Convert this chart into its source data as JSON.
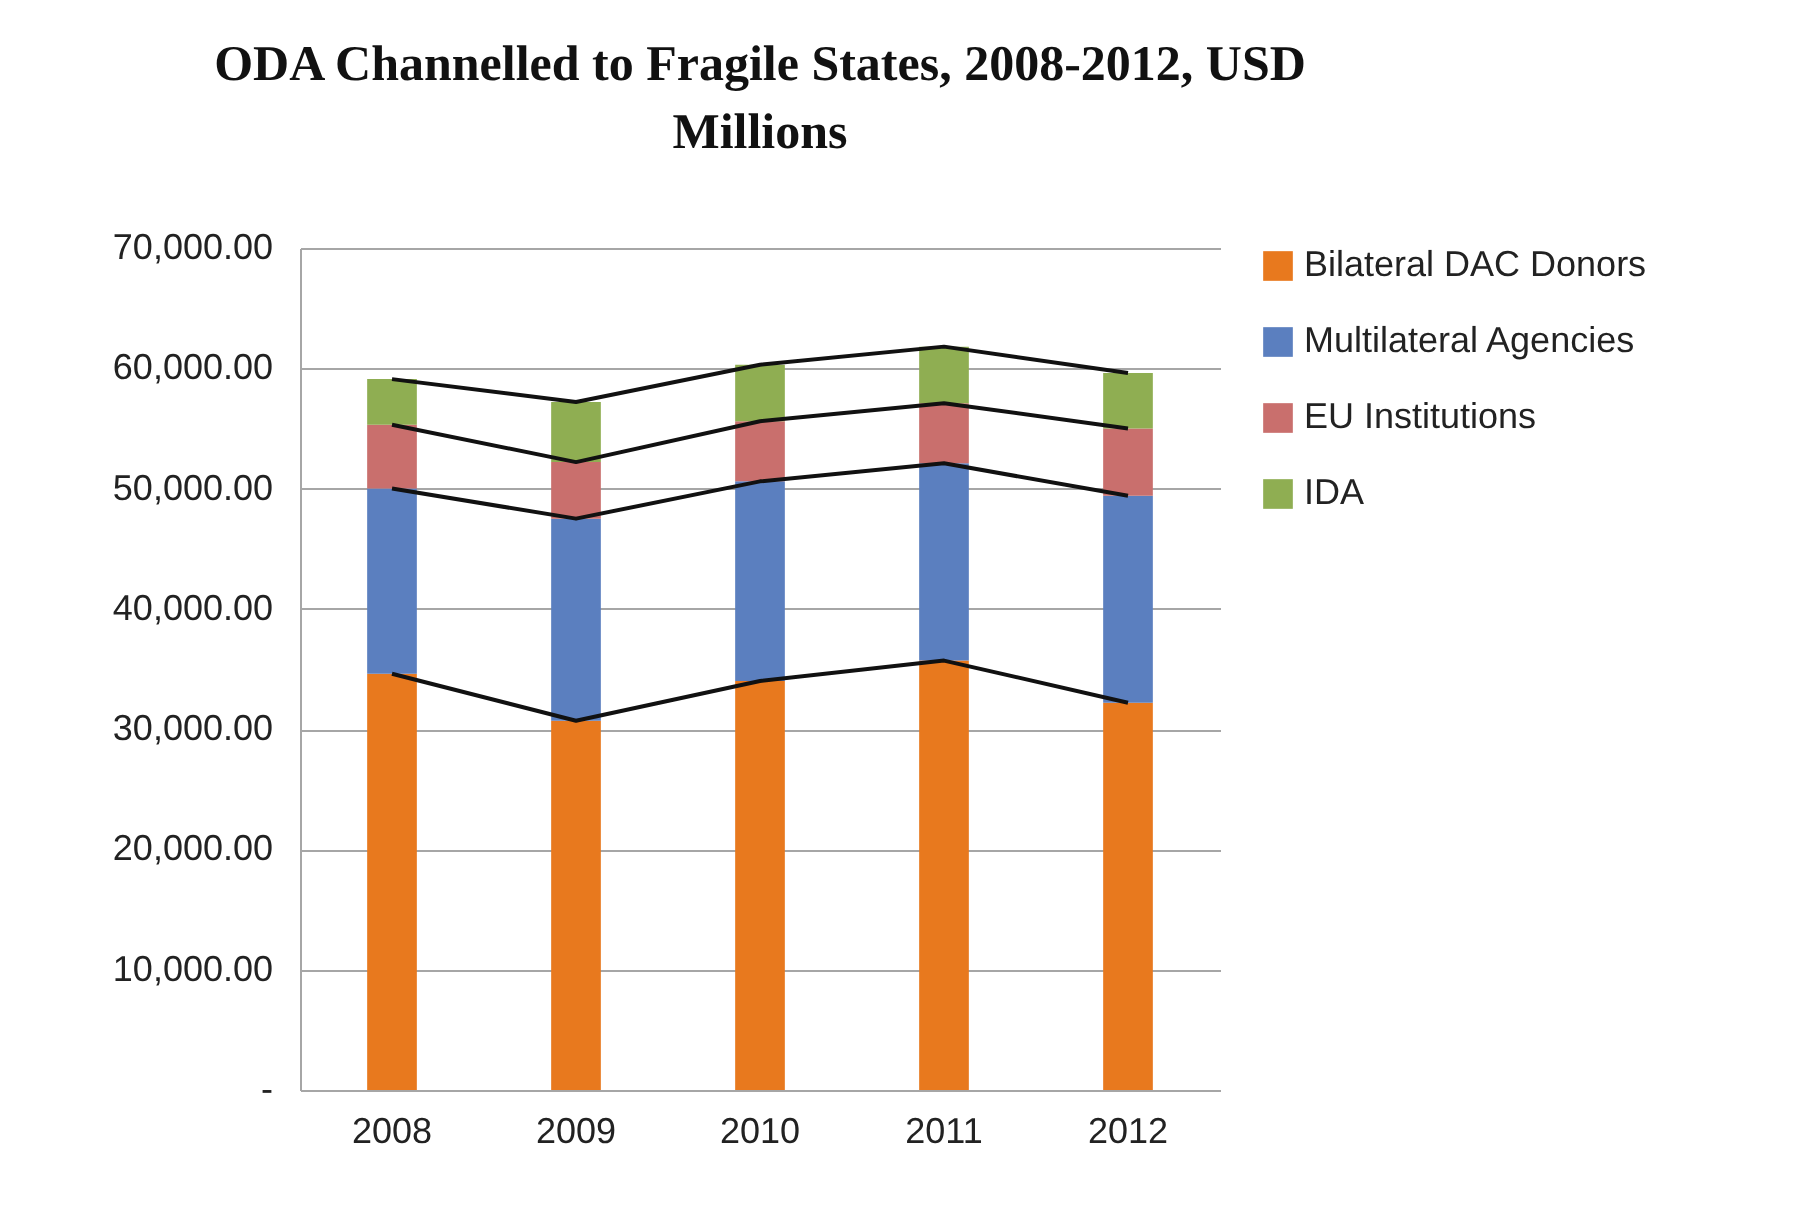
{
  "chart_data": {
    "type": "bar",
    "title": "ODA Channelled to Fragile States, 2008-2012, USD Millions",
    "categories": [
      "2008",
      "2009",
      "2010",
      "2011",
      "2012"
    ],
    "stacked": true,
    "series": [
      {
        "name": "Bilateral DAC Donors",
        "color": "#e8791e",
        "values": [
          34600,
          30700,
          34000,
          35700,
          32200
        ]
      },
      {
        "name": "Multilateral Agencies",
        "color": "#5b7fbf",
        "values": [
          15400,
          16800,
          16600,
          16400,
          17200
        ]
      },
      {
        "name": "EU Institutions",
        "color": "#c96f6d",
        "values": [
          5300,
          4700,
          5000,
          5000,
          5600
        ]
      },
      {
        "name": "IDA",
        "color": "#8fae52",
        "values": [
          3800,
          5000,
          4700,
          4700,
          4600
        ]
      }
    ],
    "ylim": [
      0,
      70000
    ],
    "yticks": [
      {
        "value": 0,
        "label": "-"
      },
      {
        "value": 10000,
        "label": "10,000.00"
      },
      {
        "value": 20000,
        "label": "20,000.00"
      },
      {
        "value": 30000,
        "label": "30,000.00"
      },
      {
        "value": 40000,
        "label": "40,000.00"
      },
      {
        "value": 50000,
        "label": "50,000.00"
      },
      {
        "value": 60000,
        "label": "60,000.00"
      },
      {
        "value": 70000,
        "label": "70,000.00"
      }
    ],
    "grid": "y",
    "legend": "right"
  }
}
